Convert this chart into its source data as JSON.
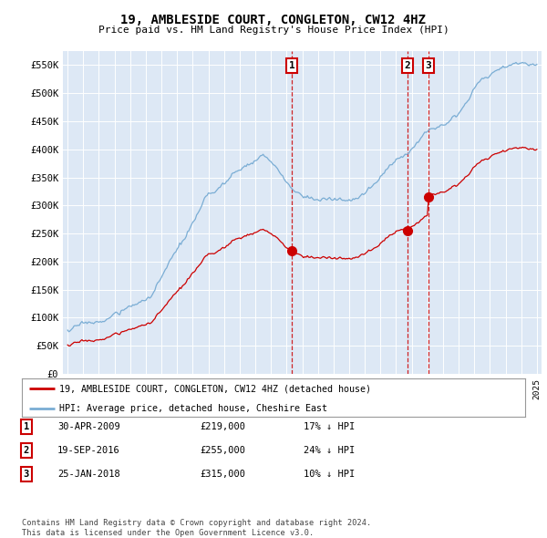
{
  "title": "19, AMBLESIDE COURT, CONGLETON, CW12 4HZ",
  "subtitle": "Price paid vs. HM Land Registry's House Price Index (HPI)",
  "plot_bg_color": "#dde8f5",
  "ylim": [
    0,
    575000
  ],
  "yticks": [
    0,
    50000,
    100000,
    150000,
    200000,
    250000,
    300000,
    350000,
    400000,
    450000,
    500000,
    550000
  ],
  "ytick_labels": [
    "£0",
    "£50K",
    "£100K",
    "£150K",
    "£200K",
    "£250K",
    "£300K",
    "£350K",
    "£400K",
    "£450K",
    "£500K",
    "£550K"
  ],
  "xlim_start": 1994.7,
  "xlim_end": 2025.3,
  "transaction_dates": [
    2009.33,
    2016.72,
    2018.08
  ],
  "transaction_prices": [
    219000,
    255000,
    315000
  ],
  "transaction_labels": [
    "1",
    "2",
    "3"
  ],
  "transaction_info": [
    {
      "label": "1",
      "date": "30-APR-2009",
      "price": "£219,000",
      "hpi": "17% ↓ HPI"
    },
    {
      "label": "2",
      "date": "19-SEP-2016",
      "price": "£255,000",
      "hpi": "24% ↓ HPI"
    },
    {
      "label": "3",
      "date": "25-JAN-2018",
      "price": "£315,000",
      "hpi": "10% ↓ HPI"
    }
  ],
  "legend_entries": [
    "19, AMBLESIDE COURT, CONGLETON, CW12 4HZ (detached house)",
    "HPI: Average price, detached house, Cheshire East"
  ],
  "footer": "Contains HM Land Registry data © Crown copyright and database right 2024.\nThis data is licensed under the Open Government Licence v3.0.",
  "hpi_color": "#7aadd4",
  "price_color": "#cc0000",
  "dashed_line_color": "#cc0000",
  "box_color": "#cc0000"
}
